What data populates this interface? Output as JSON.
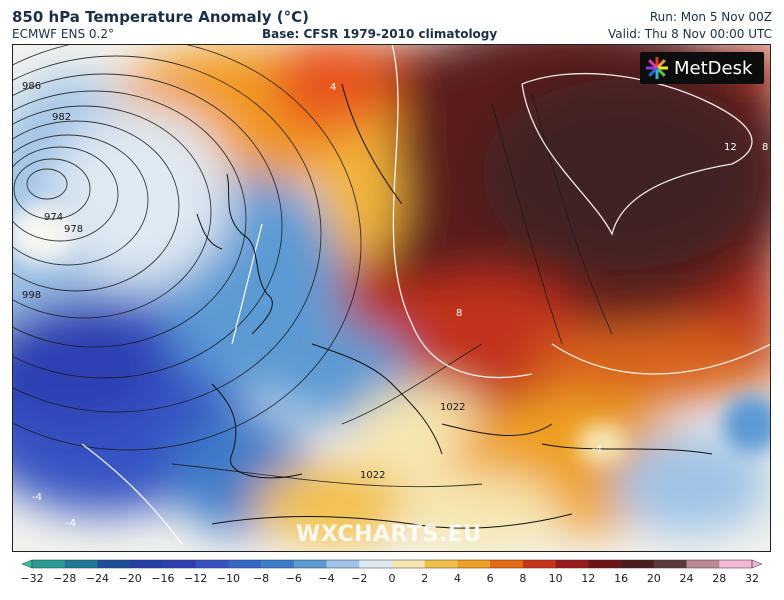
{
  "header": {
    "title": "850 hPa Temperature Anomaly (°C)",
    "model": "ECMWF ENS 0.2°",
    "base": "Base: CFSR 1979-2010 climatology",
    "run": "Run: Mon 5 Nov 00Z",
    "valid": "Valid: Thu 8 Nov 00:00 UTC"
  },
  "logo": {
    "text": "MetDesk",
    "icon": "metdesk-star-icon"
  },
  "watermark": "WXCHARTS.EU",
  "colorbar": {
    "ticks": [
      "−32",
      "−28",
      "−24",
      "−20",
      "−16",
      "−12",
      "−10",
      "−8",
      "−6",
      "−4",
      "−2",
      "0",
      "2",
      "4",
      "6",
      "8",
      "10",
      "12",
      "16",
      "20",
      "24",
      "28",
      "32"
    ],
    "colors": [
      "#2ec4a6",
      "#2a9c98",
      "#1f7896",
      "#1e4f9a",
      "#2340a8",
      "#2f3fb3",
      "#3552c2",
      "#3567c8",
      "#3d7cc9",
      "#5b9ad4",
      "#9fc3e6",
      "#dfe9f2",
      "#f6e7b2",
      "#f2c04a",
      "#efa021",
      "#e56a12",
      "#c9341a",
      "#9b1a1a",
      "#6e1414",
      "#4b1d1d",
      "#5b3a3a",
      "#b98a95",
      "#f2b8d8"
    ]
  },
  "isobar_labels": [
    "986",
    "982",
    "974",
    "978",
    "998",
    "1022",
    "1022"
  ],
  "anomaly_labels": [
    "12",
    "8",
    "4",
    "8",
    "-4",
    "-4",
    "-4"
  ]
}
